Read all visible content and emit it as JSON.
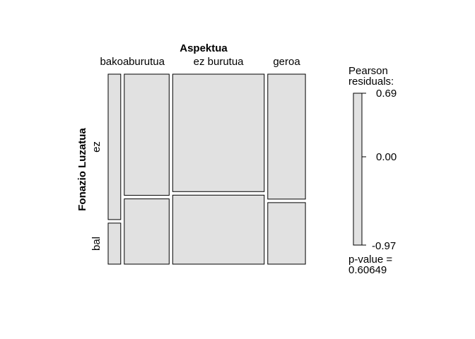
{
  "chart_data": {
    "type": "mosaic",
    "title": "",
    "x_variable": "Aspektua",
    "y_variable": "Fonazio Luzatua",
    "categories": [
      "bakoa",
      "burutua",
      "ez burutua",
      "geroa"
    ],
    "rows": [
      "ez",
      "bal"
    ],
    "column_widths": [
      0.07,
      0.25,
      0.51,
      0.21
    ],
    "row_proportions": [
      [
        0.78,
        0.22
      ],
      [
        0.65,
        0.35
      ],
      [
        0.63,
        0.37
      ],
      [
        0.67,
        0.33
      ]
    ],
    "fill_color": "#e1e1e1",
    "stroke_color": "#000000",
    "legend": {
      "title_line1": "Pearson",
      "title_line2": "residuals:",
      "max": 0.69,
      "mid": 0.0,
      "min": -0.97,
      "max_label": "0.69",
      "mid_label": "0.00",
      "min_label": "-0.97",
      "pvalue_line1": "p-value =",
      "pvalue_line2": "0.60649",
      "placement": "right"
    }
  }
}
